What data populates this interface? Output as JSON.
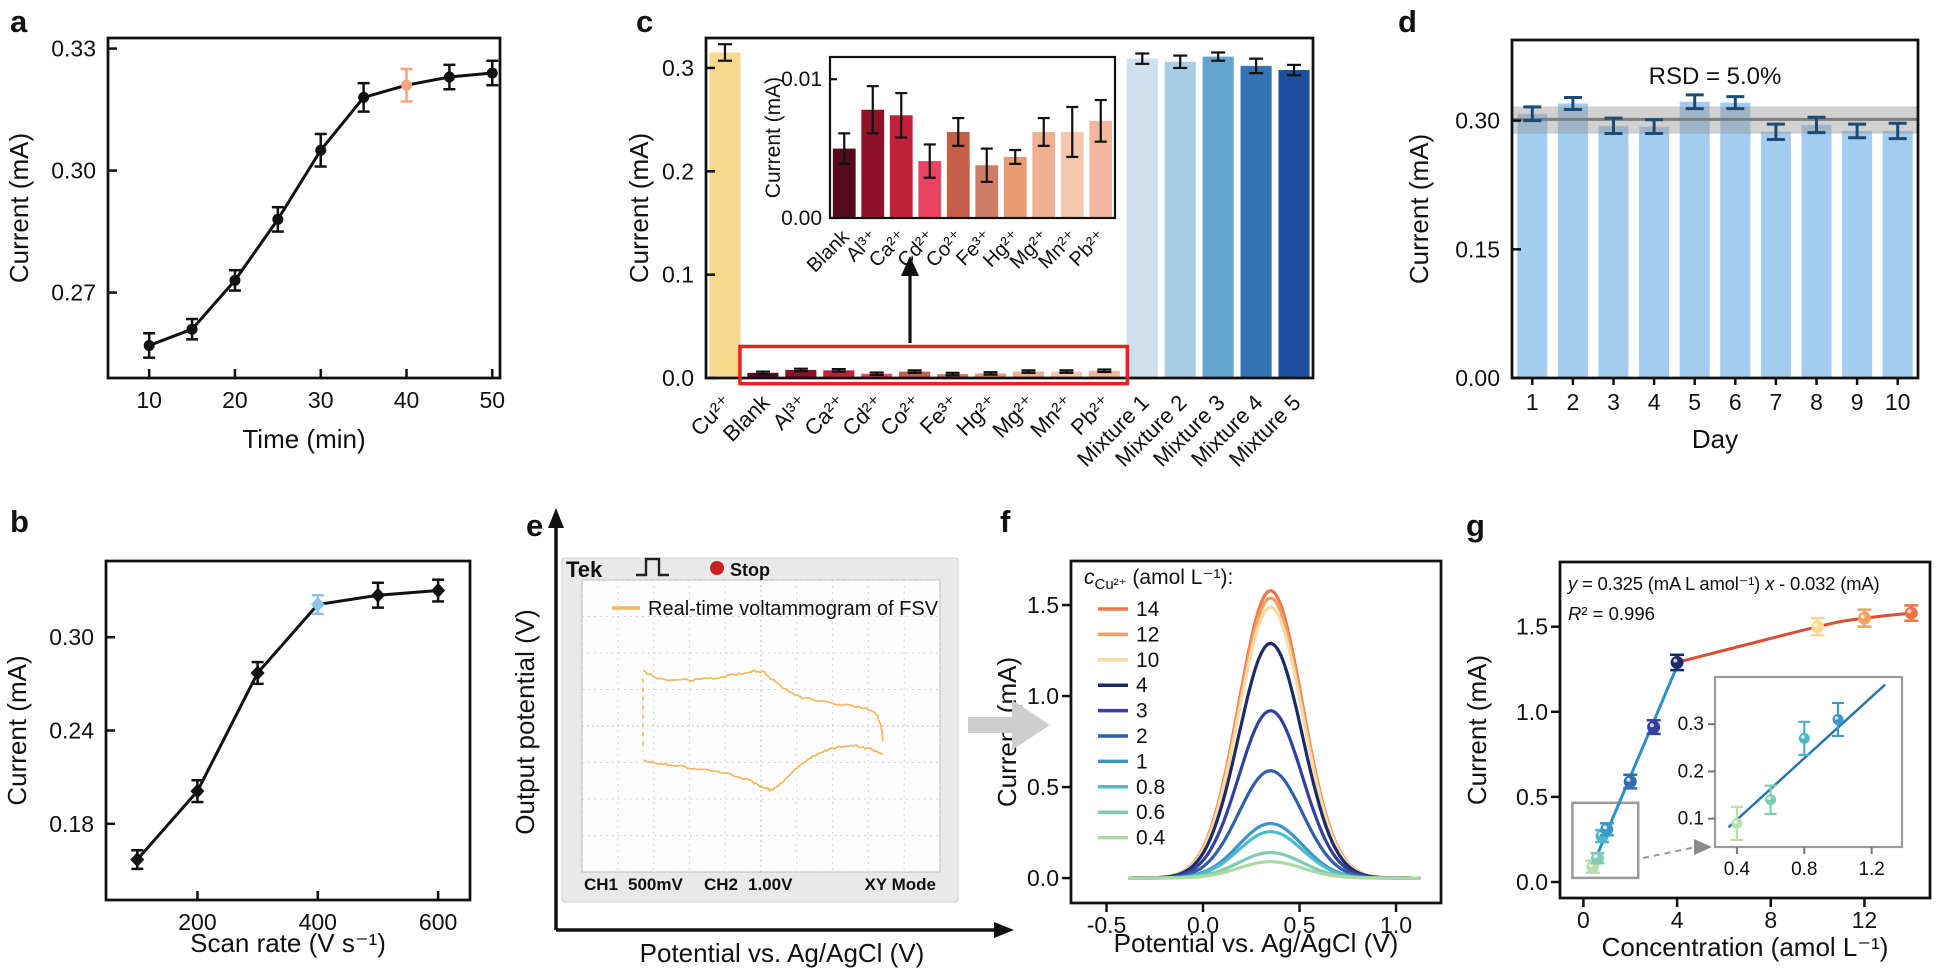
{
  "figure": {
    "background": "#ffffff"
  },
  "chart_data": [
    {
      "panel": "a",
      "panel_label": "a",
      "type": "line",
      "marker": "circle",
      "xlabel": "Time (min)",
      "ylabel": "Current (mA)",
      "x": [
        10,
        15,
        20,
        25,
        30,
        35,
        40,
        45,
        50
      ],
      "y": [
        0.257,
        0.261,
        0.273,
        0.288,
        0.305,
        0.318,
        0.321,
        0.323,
        0.324
      ],
      "yerr": [
        0.003,
        0.0025,
        0.0025,
        0.003,
        0.004,
        0.0035,
        0.004,
        0.003,
        0.003
      ],
      "highlight_index": 6,
      "highlight_color": "#f2a480",
      "line_color": "#111111",
      "xtick_vals": [
        10,
        20,
        30,
        40,
        50
      ],
      "xtick_labels": [
        "10",
        "20",
        "30",
        "40",
        "50"
      ],
      "ytick_vals": [
        0.27,
        0.3,
        0.33
      ],
      "ytick_labels": [
        "0.27",
        "0.30",
        "0.33"
      ],
      "xlim": [
        5.2,
        50.9
      ],
      "ylim": [
        0.249,
        0.3326
      ],
      "grid": false
    },
    {
      "panel": "b",
      "panel_label": "b",
      "type": "line",
      "marker": "diamond",
      "xlabel": "Scan rate (V s⁻¹)",
      "ylabel": "Current (mA)",
      "x": [
        100,
        200,
        300,
        400,
        500,
        600
      ],
      "y": [
        0.157,
        0.201,
        0.277,
        0.321,
        0.327,
        0.33
      ],
      "yerr": [
        0.006,
        0.007,
        0.007,
        0.006,
        0.008,
        0.007
      ],
      "highlight_index": 3,
      "highlight_color": "#8ac4e8",
      "line_color": "#111111",
      "xtick_vals": [
        200,
        400,
        600
      ],
      "xtick_labels": [
        "200",
        "400",
        "600"
      ],
      "ytick_vals": [
        0.18,
        0.24,
        0.3
      ],
      "ytick_labels": [
        "0.18",
        "0.24",
        "0.30"
      ],
      "xlim": [
        48,
        653
      ],
      "ylim": [
        0.131,
        0.349
      ],
      "grid": false
    },
    {
      "panel": "c",
      "panel_label": "c",
      "type": "bar",
      "ylabel": "Current (mA)",
      "categories": [
        "Cu²⁺",
        "Blank",
        "Al³⁺",
        "Ca²⁺",
        "Cd²⁺",
        "Co²⁺",
        "Fe³⁺",
        "Hg²⁺",
        "Mg²⁺",
        "Mn²⁺",
        "Pb²⁺",
        "Mixture 1",
        "Mixture 2",
        "Mixture 3",
        "Mixture 4",
        "Mixture 5"
      ],
      "values": [
        0.315,
        0.005,
        0.0078,
        0.0074,
        0.0041,
        0.0062,
        0.0038,
        0.0044,
        0.0062,
        0.0062,
        0.007,
        0.309,
        0.306,
        0.311,
        0.302,
        0.298
      ],
      "errors": [
        0.008,
        0.0012,
        0.0012,
        0.0012,
        0.0012,
        0.0012,
        0.0012,
        0.0012,
        0.0012,
        0.0012,
        0.0012,
        0.005,
        0.006,
        0.004,
        0.007,
        0.005
      ],
      "colors": [
        "#f7d98d",
        "#550a1e",
        "#8e1127",
        "#c02339",
        "#e94560",
        "#c55f49",
        "#cf7c66",
        "#e79b72",
        "#efb092",
        "#f5c8ae",
        "#f2b89d",
        "#cfe0ee",
        "#a9cde4",
        "#62a6d0",
        "#3274b6",
        "#1c4f9e"
      ],
      "ytick_vals": [
        0.0,
        0.1,
        0.2,
        0.3
      ],
      "ytick_labels": [
        "0.0",
        "0.1",
        "0.2",
        "0.3"
      ],
      "ylim": [
        0,
        0.329
      ],
      "highlight_box_color": "#e8231f",
      "inset": {
        "ylabel": "Current (mA)",
        "categories": [
          "Blank",
          "Al³⁺",
          "Ca²⁺",
          "Cd²⁺",
          "Co²⁺",
          "Fe³⁺",
          "Hg²⁺",
          "Mg²⁺",
          "Mn²⁺",
          "Pb²⁺"
        ],
        "values": [
          0.005,
          0.0078,
          0.0074,
          0.0041,
          0.0062,
          0.0038,
          0.0044,
          0.0062,
          0.0062,
          0.007
        ],
        "errors": [
          0.0011,
          0.0017,
          0.0016,
          0.0012,
          0.001,
          0.0012,
          0.0005,
          0.001,
          0.0018,
          0.0015
        ],
        "colors": [
          "#550a1e",
          "#8e1127",
          "#c02339",
          "#e94560",
          "#c55f49",
          "#cf7c66",
          "#e79b72",
          "#efb092",
          "#f5c8ae",
          "#f2b89d"
        ],
        "ytick_vals": [
          0.0,
          0.01
        ],
        "ytick_labels": [
          "0.00",
          "0.01"
        ],
        "ylim": [
          0,
          0.0116
        ]
      }
    },
    {
      "panel": "d",
      "panel_label": "d",
      "type": "bar",
      "xlabel": "Day",
      "ylabel": "Current (mA)",
      "annotation": "RSD = 5.0%",
      "categories": [
        "1",
        "2",
        "3",
        "4",
        "5",
        "6",
        "7",
        "8",
        "9",
        "10"
      ],
      "values": [
        0.308,
        0.32,
        0.294,
        0.293,
        0.322,
        0.321,
        0.287,
        0.295,
        0.288,
        0.288
      ],
      "errors": [
        0.008,
        0.007,
        0.009,
        0.008,
        0.008,
        0.007,
        0.009,
        0.009,
        0.008,
        0.009
      ],
      "bar_color": "#a3cdf0",
      "error_color": "#1d4a72",
      "band": [
        0.2847,
        0.3165
      ],
      "band_color": "#9a9a9a",
      "band_opacity": 0.45,
      "band_line": 0.3015,
      "band_line_color": "#7d7d7d",
      "ytick_vals": [
        0.0,
        0.15,
        0.3
      ],
      "ytick_labels": [
        "0.00",
        "0.15",
        "0.30"
      ],
      "ylim": [
        0,
        0.394
      ]
    },
    {
      "panel": "e",
      "panel_label": "e",
      "type": "oscilloscope-xy",
      "xlabel": "Potential vs. Ag/AgCl (V)",
      "ylabel": "Output potential (V)",
      "scope": {
        "brand": "Tek",
        "status": "Stop",
        "status_color": "#cc1f1f",
        "legend_label": "Real-time voltammogram of FSV",
        "ch1_label": "CH1",
        "ch1_value": "500mV",
        "ch1_color": "#f0a630",
        "ch2_label": "CH2",
        "ch2_value": "1.00V",
        "ch2_color": "#2ebcd0",
        "mode_label": "XY Mode",
        "trace_color": "#f2b85e"
      },
      "trace": {
        "upper": [
          [
            -3.3,
            1.52
          ],
          [
            -2.95,
            1.33
          ],
          [
            -2.5,
            1.26
          ],
          [
            -2.0,
            1.26
          ],
          [
            -1.5,
            1.3
          ],
          [
            -1.0,
            1.36
          ],
          [
            -0.55,
            1.44
          ],
          [
            -0.2,
            1.52
          ],
          [
            0.1,
            1.47
          ],
          [
            0.4,
            1.2
          ],
          [
            0.75,
            0.95
          ],
          [
            1.15,
            0.78
          ],
          [
            1.6,
            0.68
          ],
          [
            2.1,
            0.6
          ],
          [
            2.6,
            0.55
          ],
          [
            3.0,
            0.46
          ],
          [
            3.25,
            0.28
          ],
          [
            3.38,
            -0.1
          ],
          [
            3.4,
            -0.42
          ]
        ],
        "lower": [
          [
            3.4,
            -0.78
          ],
          [
            3.05,
            -0.62
          ],
          [
            2.65,
            -0.54
          ],
          [
            2.25,
            -0.56
          ],
          [
            1.85,
            -0.66
          ],
          [
            1.45,
            -0.84
          ],
          [
            1.05,
            -1.1
          ],
          [
            0.7,
            -1.42
          ],
          [
            0.45,
            -1.68
          ],
          [
            0.25,
            -1.76
          ],
          [
            0.0,
            -1.64
          ],
          [
            -0.4,
            -1.46
          ],
          [
            -0.9,
            -1.32
          ],
          [
            -1.45,
            -1.22
          ],
          [
            -2.05,
            -1.14
          ],
          [
            -2.6,
            -1.07
          ],
          [
            -3.05,
            -1.0
          ],
          [
            -3.28,
            -0.92
          ]
        ],
        "connector": [
          [
            -3.3,
            1.3
          ],
          [
            -3.3,
            -0.7
          ]
        ]
      }
    },
    {
      "panel": "f",
      "panel_label": "f",
      "type": "line",
      "xlabel": "Potential vs. Ag/AgCl (V)",
      "ylabel": "Current (mA)",
      "legend_title": {
        "var": "c",
        "sub": "Cu²⁺",
        "rest": " (amol L⁻¹):"
      },
      "series": [
        {
          "label": "14",
          "color": "#f0744c",
          "peak": 1.58
        },
        {
          "label": "12",
          "color": "#f59e64",
          "peak": 1.54
        },
        {
          "label": "10",
          "color": "#f8dba3",
          "peak": 1.49
        },
        {
          "label": "4",
          "color": "#1b2a68",
          "peak": 1.29
        },
        {
          "label": "3",
          "color": "#34409f",
          "peak": 0.92
        },
        {
          "label": "2",
          "color": "#2e5fa8",
          "peak": 0.59
        },
        {
          "label": "1",
          "color": "#3d94c5",
          "peak": 0.3
        },
        {
          "label": "0.8",
          "color": "#4cbcca",
          "peak": 0.255
        },
        {
          "label": "0.6",
          "color": "#7fcab3",
          "peak": 0.14
        },
        {
          "label": "0.4",
          "color": "#abd9a2",
          "peak": 0.09
        }
      ],
      "peak_center": 0.35,
      "peak_sigma": 0.165,
      "curve_x_range": [
        -0.38,
        1.12
      ],
      "xtick_vals": [
        -0.5,
        0.0,
        0.5,
        1.0
      ],
      "xtick_labels": [
        "-0.5",
        "0.0",
        "0.5",
        "1.0"
      ],
      "ytick_vals": [
        0.0,
        0.5,
        1.0,
        1.5
      ],
      "ytick_labels": [
        "0.0",
        "0.5",
        "1.0",
        "1.5"
      ],
      "xlim": [
        -0.684,
        1.233
      ],
      "ylim": [
        -0.137,
        1.742
      ]
    },
    {
      "panel": "g",
      "panel_label": "g",
      "type": "scatter",
      "xlabel": "Concentration (amol L⁻¹)",
      "ylabel": "Current (mA)",
      "equation_parts": [
        {
          "t": "y",
          "i": true
        },
        {
          "t": " = 0.325 (mA L amol⁻¹) "
        },
        {
          "t": "x",
          "i": true
        },
        {
          "t": " - 0.032 (mA)"
        }
      ],
      "r2_parts": [
        {
          "t": "R",
          "i": true
        },
        {
          "t": "² = 0.996"
        }
      ],
      "equation_color": "#1d7cb8",
      "x": [
        0.4,
        0.6,
        0.8,
        1,
        2,
        3,
        4,
        10,
        12,
        14
      ],
      "y": [
        0.09,
        0.14,
        0.27,
        0.31,
        0.59,
        0.91,
        1.29,
        1.5,
        1.55,
        1.58
      ],
      "yerr": [
        0.035,
        0.03,
        0.035,
        0.035,
        0.04,
        0.04,
        0.045,
        0.05,
        0.05,
        0.045
      ],
      "point_colors": [
        "#b9dfa8",
        "#7fcbb4",
        "#4ab7c9",
        "#3d98c9",
        "#2e6fb3",
        "#333f9e",
        "#1b2a68",
        "#f8d993",
        "#f5a060",
        "#ef7048"
      ],
      "fit_line": {
        "slope": 0.325,
        "intercept": -0.032,
        "x_start": 0.38,
        "x_end": 4.06,
        "color": "#2d8fc9"
      },
      "upper_line": {
        "x": [
          4,
          10,
          12,
          14
        ],
        "y": [
          1.29,
          1.5,
          1.55,
          1.58
        ],
        "color": "#d94f35"
      },
      "xtick_vals": [
        0,
        4,
        8,
        12
      ],
      "xtick_labels": [
        "0",
        "4",
        "8",
        "12"
      ],
      "ytick_vals": [
        0.0,
        0.5,
        1.0,
        1.5
      ],
      "ytick_labels": [
        "0.0",
        "0.5",
        "1.0",
        "1.5"
      ],
      "xlim": [
        -1,
        14.8
      ],
      "ylim": [
        -0.094,
        1.88
      ],
      "select_box": {
        "x": [
          -0.47,
          2.34
        ],
        "y": [
          0.024,
          0.465
        ],
        "color": "#9a9a9a"
      },
      "inset": {
        "x": [
          0.4,
          0.6,
          0.8,
          1.0
        ],
        "y": [
          0.09,
          0.14,
          0.27,
          0.31
        ],
        "yerr": [
          0.035,
          0.03,
          0.035,
          0.035
        ],
        "colors": [
          "#b9dfa8",
          "#7fcbb4",
          "#4ab7c9",
          "#3d98c9"
        ],
        "fit": {
          "x_start": 0.35,
          "x_end": 1.28,
          "slope": 0.325,
          "intercept": -0.032,
          "color": "#2b74ae"
        },
        "xtick_vals": [
          0.4,
          0.8,
          1.2
        ],
        "xtick_labels": [
          "0.4",
          "0.8",
          "1.2"
        ],
        "ytick_vals": [
          0.1,
          0.2,
          0.3
        ],
        "ytick_labels": [
          "0.1",
          "0.2",
          "0.3"
        ],
        "xlim": [
          0.27,
          1.38
        ],
        "ylim": [
          0.04,
          0.4
        ],
        "frame_color": "#9a9a9a",
        "tick_color": "#777777"
      }
    }
  ]
}
